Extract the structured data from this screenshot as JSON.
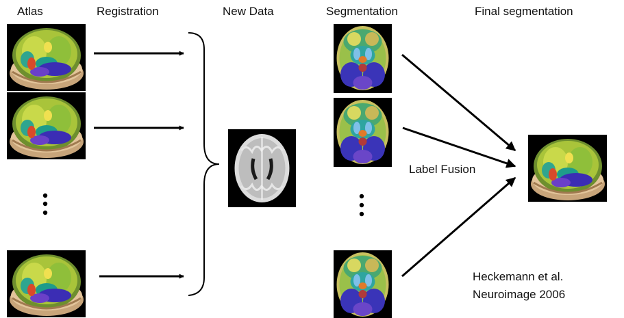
{
  "headers": {
    "atlas": "Atlas",
    "registration": "Registration",
    "new_data": "New Data",
    "segmentation": "Segmentation",
    "final_segmentation": "Final segmentation"
  },
  "label_fusion": "Label Fusion",
  "citation": {
    "line1": "Heckemann et al.",
    "line2": "Neuroimage 2006"
  },
  "images": {
    "atlas": "3D atlas brain rendering with colored labels",
    "new_data": "grayscale axial brain MRI",
    "segmentation": "axial brain slice with colored segmentation labels",
    "final": "3D brain rendering with fused segmentation labels"
  }
}
